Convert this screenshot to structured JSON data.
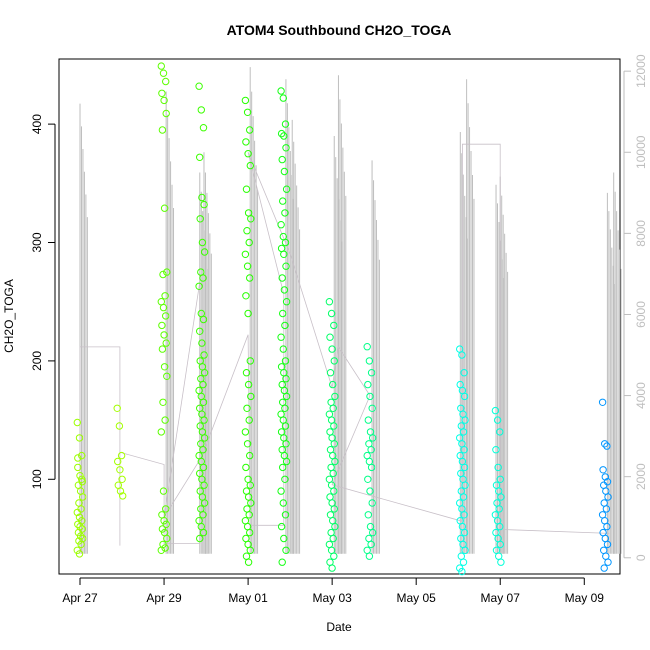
{
  "chart_data": {
    "type": "scatter",
    "title": "ATOM4 Southbound CH2O_TOGA",
    "xlabel": "Date",
    "ylabel": "CH2O_TOGA",
    "x_ticks": [
      "Apr 27",
      "Apr 29",
      "May 01",
      "May 03",
      "May 05",
      "May 07",
      "May 09"
    ],
    "x_tick_days": [
      27,
      29,
      31,
      33,
      35,
      37,
      39
    ],
    "xlim_days": [
      26.5,
      39.85
    ],
    "y_ticks": [
      100,
      200,
      300,
      400
    ],
    "ylim": [
      20,
      455
    ],
    "y2_ticks": [
      0,
      2000,
      4000,
      6000,
      8000,
      10000,
      12000
    ],
    "y2lim": [
      -400,
      12300
    ],
    "y2_color": "#bebebe",
    "marker": "open-circle",
    "point_groups": [
      {
        "day": 27.0,
        "color": "#9cff00",
        "values": [
          148,
          135,
          120,
          110,
          103,
          98,
          95,
          90,
          85,
          80,
          75,
          72,
          68,
          65,
          62,
          60,
          58,
          55,
          52,
          50,
          48,
          45,
          40,
          37,
          100,
          118
        ]
      },
      {
        "day": 27.95,
        "color": "#a4ff00",
        "values": [
          160,
          145,
          120,
          115,
          108,
          100,
          95,
          90,
          86
        ]
      },
      {
        "day": 29.0,
        "color": "#5cff00",
        "values": [
          449,
          443,
          436,
          426,
          420,
          409,
          395,
          329,
          275,
          273,
          255,
          250,
          245,
          238,
          230,
          222,
          215,
          210,
          195,
          187,
          165,
          150,
          140,
          90,
          75,
          70,
          65,
          62,
          58,
          55,
          50,
          45,
          42,
          40
        ]
      },
      {
        "day": 29.9,
        "color": "#3cff00",
        "values": [
          432,
          412,
          397,
          372,
          338,
          332,
          320,
          300,
          292,
          275,
          270,
          263,
          240,
          235,
          225,
          215,
          205,
          200,
          195,
          190,
          185,
          180,
          175,
          170,
          165,
          160,
          155,
          150,
          145,
          140,
          135,
          130,
          125,
          120,
          115,
          110,
          105,
          100,
          95,
          90,
          85,
          80,
          75,
          70,
          65,
          60,
          55,
          50
        ]
      },
      {
        "day": 31.0,
        "color": "#28ff00",
        "values": [
          420,
          410,
          395,
          385,
          375,
          365,
          345,
          325,
          320,
          310,
          300,
          290,
          280,
          270,
          255,
          240,
          200,
          190,
          180,
          170,
          160,
          150,
          140,
          130,
          120,
          110,
          100,
          95,
          90,
          85,
          80,
          75,
          70,
          65,
          60,
          55,
          50,
          45,
          40,
          35,
          30
        ]
      },
      {
        "day": 31.85,
        "color": "#14ff14",
        "values": [
          428,
          422,
          400,
          392,
          390,
          380,
          370,
          360,
          345,
          335,
          325,
          315,
          305,
          300,
          295,
          290,
          280,
          270,
          260,
          250,
          240,
          230,
          220,
          210,
          200,
          195,
          190,
          185,
          180,
          175,
          170,
          165,
          160,
          155,
          150,
          145,
          140,
          135,
          130,
          125,
          120,
          115,
          110,
          100,
          90,
          80,
          70,
          60,
          50,
          40,
          30
        ]
      },
      {
        "day": 33.0,
        "color": "#00ff66",
        "values": [
          250,
          240,
          230,
          220,
          210,
          200,
          190,
          180,
          170,
          165,
          160,
          155,
          150,
          145,
          140,
          135,
          130,
          125,
          120,
          115,
          110,
          105,
          100,
          95,
          90,
          85,
          80,
          75,
          70,
          65,
          60,
          55,
          50,
          45,
          40,
          35,
          30,
          25
        ]
      },
      {
        "day": 33.9,
        "color": "#00ff88",
        "values": [
          212,
          200,
          190,
          180,
          170,
          160,
          150,
          140,
          135,
          130,
          125,
          120,
          115,
          110,
          100,
          90,
          80,
          70,
          60,
          55,
          50,
          45,
          40,
          35
        ]
      },
      {
        "day": 36.1,
        "color": "#00ffe6",
        "values": [
          210,
          205,
          190,
          180,
          175,
          170,
          160,
          155,
          150,
          145,
          140,
          135,
          130,
          125,
          120,
          115,
          110,
          105,
          100,
          95,
          90,
          85,
          80,
          75,
          70,
          65,
          60,
          55,
          50,
          45,
          40,
          35,
          30,
          25,
          22
        ]
      },
      {
        "day": 36.95,
        "color": "#00ffd8",
        "values": [
          158,
          150,
          140,
          125,
          110,
          100,
          95,
          90,
          85,
          80,
          75,
          70,
          65,
          60,
          55,
          50,
          45,
          40,
          35,
          30
        ]
      },
      {
        "day": 39.5,
        "color": "#0096ff",
        "values": [
          165,
          130,
          128,
          108,
          102,
          98,
          95,
          90,
          85,
          80,
          75,
          70,
          65,
          60,
          55,
          50,
          45,
          40,
          35,
          30,
          25
        ]
      }
    ],
    "secondary_series": {
      "color": "#bebebe",
      "description_axis": "right",
      "spikes": [
        {
          "day": 27.0,
          "top": 11200
        },
        {
          "day": 29.05,
          "top": 11500
        },
        {
          "day": 29.85,
          "top": 9500
        },
        {
          "day": 29.95,
          "top": 10000
        },
        {
          "day": 31.05,
          "top": 12100
        },
        {
          "day": 31.9,
          "top": 11800
        },
        {
          "day": 32.05,
          "top": 10800
        },
        {
          "day": 33.05,
          "top": 10400
        },
        {
          "day": 33.15,
          "top": 11900
        },
        {
          "day": 33.95,
          "top": 9800
        },
        {
          "day": 36.05,
          "top": 10500
        },
        {
          "day": 36.2,
          "top": 11800
        },
        {
          "day": 36.9,
          "top": 9200
        },
        {
          "day": 37.0,
          "top": 9400
        },
        {
          "day": 39.55,
          "top": 9000
        },
        {
          "day": 39.7,
          "top": 9500
        }
      ],
      "path": [
        [
          27.0,
          500
        ],
        [
          27.0,
          5200
        ],
        [
          27.95,
          5200
        ],
        [
          27.95,
          300
        ],
        [
          27.95,
          2600
        ],
        [
          29.0,
          2300
        ],
        [
          29.0,
          350
        ],
        [
          29.85,
          350
        ],
        [
          29.85,
          6800
        ],
        [
          29.0,
          1000
        ],
        [
          29.9,
          2500
        ],
        [
          31.0,
          5500
        ],
        [
          31.05,
          800
        ],
        [
          31.85,
          800
        ],
        [
          31.85,
          6500
        ],
        [
          31.0,
          10000
        ],
        [
          32.0,
          7500
        ],
        [
          33.0,
          4200
        ],
        [
          33.15,
          5200
        ],
        [
          33.9,
          4000
        ],
        [
          33.0,
          1800
        ],
        [
          36.1,
          900
        ],
        [
          36.1,
          10200
        ],
        [
          37.0,
          10200
        ],
        [
          37.0,
          700
        ],
        [
          39.6,
          600
        ]
      ]
    }
  }
}
